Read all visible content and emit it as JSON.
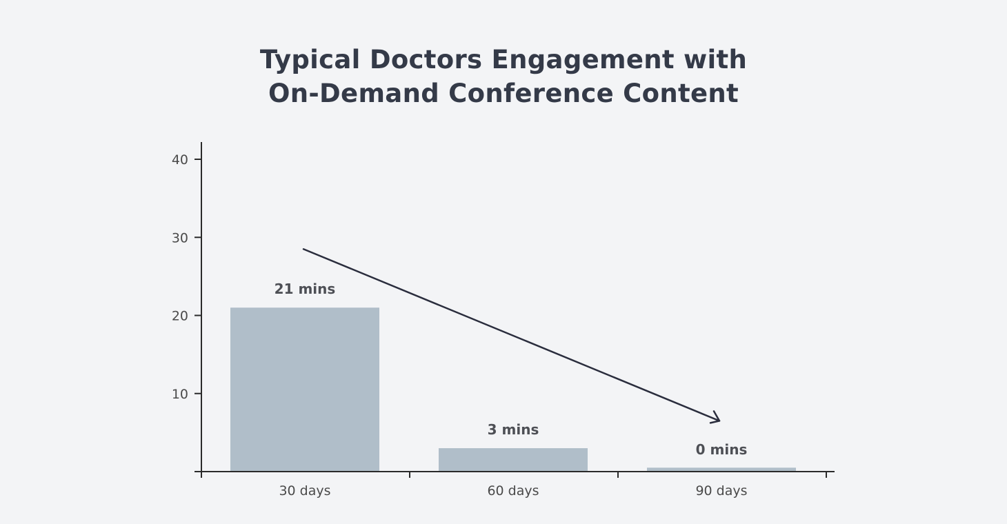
{
  "chart_data": {
    "type": "bar",
    "title": "Typical Doctors Engagement with On-Demand Conference Content",
    "title_lines": [
      "Typical Doctors Engagement with",
      "On-Demand Conference Content"
    ],
    "categories": [
      "30 days",
      "60 days",
      "90 days"
    ],
    "values": [
      21,
      3,
      0.5
    ],
    "data_labels": [
      "21 mins",
      "3 mins",
      "0 mins"
    ],
    "xlabel": "",
    "ylabel": "",
    "ylim": [
      0,
      40
    ],
    "yticks": [
      10,
      20,
      30,
      40
    ],
    "grid": false,
    "legend": null,
    "bar_color": "#b0bec9",
    "axis_color": "#2a2a2a",
    "annotations": [
      {
        "type": "arrow",
        "from": {
          "x": "30 days",
          "y": 28.5
        },
        "to": {
          "x": "90 days",
          "y": 6.5
        },
        "color": "#2a2d3d",
        "meaning": "declining trend"
      }
    ]
  }
}
